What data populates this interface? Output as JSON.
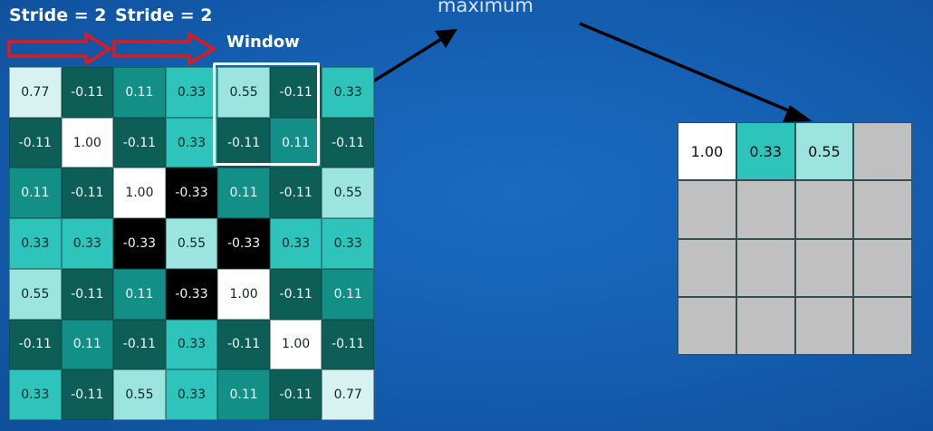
{
  "labels": {
    "stride_1": "Stride = 2",
    "stride_2": "Stride = 2",
    "window": "Window",
    "maximum": "maximum"
  },
  "colors": {
    "background": "#1560b3",
    "window_border": "#ffffff",
    "stride_arrow": "#e0191d",
    "pointer_arrow": "#000000",
    "empty_output_cell": "#c0c0c0"
  },
  "input_grid": [
    [
      {
        "v": "0.77",
        "bg": "#d7f2f0"
      },
      {
        "v": "-0.11",
        "bg": "#0e5e58",
        "w": 1
      },
      {
        "v": "0.11",
        "bg": "#128f86",
        "w": 1
      },
      {
        "v": "0.33",
        "bg": "#2ec3bb"
      },
      {
        "v": "0.55",
        "bg": "#9be4e0"
      },
      {
        "v": "-0.11",
        "bg": "#0e5e58",
        "w": 1
      },
      {
        "v": "0.33",
        "bg": "#2ec3bb"
      }
    ],
    [
      {
        "v": "-0.11",
        "bg": "#0e5e58",
        "w": 1
      },
      {
        "v": "1.00",
        "bg": "#ffffff"
      },
      {
        "v": "-0.11",
        "bg": "#0e5e58",
        "w": 1
      },
      {
        "v": "0.33",
        "bg": "#2ec3bb"
      },
      {
        "v": "-0.11",
        "bg": "#0e5e58",
        "w": 1
      },
      {
        "v": "0.11",
        "bg": "#128f86",
        "w": 1
      },
      {
        "v": "-0.11",
        "bg": "#0e5e58",
        "w": 1
      }
    ],
    [
      {
        "v": "0.11",
        "bg": "#128f86",
        "w": 1
      },
      {
        "v": "-0.11",
        "bg": "#0e5e58",
        "w": 1
      },
      {
        "v": "1.00",
        "bg": "#ffffff"
      },
      {
        "v": "-0.33",
        "bg": "#000000",
        "w": 1
      },
      {
        "v": "0.11",
        "bg": "#128f86",
        "w": 1
      },
      {
        "v": "-0.11",
        "bg": "#0e5e58",
        "w": 1
      },
      {
        "v": "0.55",
        "bg": "#9be4e0"
      }
    ],
    [
      {
        "v": "0.33",
        "bg": "#2ec3bb"
      },
      {
        "v": "0.33",
        "bg": "#2ec3bb"
      },
      {
        "v": "-0.33",
        "bg": "#000000",
        "w": 1
      },
      {
        "v": "0.55",
        "bg": "#9be4e0"
      },
      {
        "v": "-0.33",
        "bg": "#000000",
        "w": 1
      },
      {
        "v": "0.33",
        "bg": "#2ec3bb"
      },
      {
        "v": "0.33",
        "bg": "#2ec3bb"
      }
    ],
    [
      {
        "v": "0.55",
        "bg": "#9be4e0"
      },
      {
        "v": "-0.11",
        "bg": "#0e5e58",
        "w": 1
      },
      {
        "v": "0.11",
        "bg": "#128f86",
        "w": 1
      },
      {
        "v": "-0.33",
        "bg": "#000000",
        "w": 1
      },
      {
        "v": "1.00",
        "bg": "#ffffff"
      },
      {
        "v": "-0.11",
        "bg": "#0e5e58",
        "w": 1
      },
      {
        "v": "0.11",
        "bg": "#128f86",
        "w": 1
      }
    ],
    [
      {
        "v": "-0.11",
        "bg": "#0e5e58",
        "w": 1
      },
      {
        "v": "0.11",
        "bg": "#128f86",
        "w": 1
      },
      {
        "v": "-0.11",
        "bg": "#0e5e58",
        "w": 1
      },
      {
        "v": "0.33",
        "bg": "#2ec3bb"
      },
      {
        "v": "-0.11",
        "bg": "#0e5e58",
        "w": 1
      },
      {
        "v": "1.00",
        "bg": "#ffffff"
      },
      {
        "v": "-0.11",
        "bg": "#0e5e58",
        "w": 1
      }
    ],
    [
      {
        "v": "0.33",
        "bg": "#2ec3bb"
      },
      {
        "v": "-0.11",
        "bg": "#0e5e58",
        "w": 1
      },
      {
        "v": "0.55",
        "bg": "#9be4e0"
      },
      {
        "v": "0.33",
        "bg": "#2ec3bb"
      },
      {
        "v": "0.11",
        "bg": "#128f86",
        "w": 1
      },
      {
        "v": "-0.11",
        "bg": "#0e5e58",
        "w": 1
      },
      {
        "v": "0.77",
        "bg": "#d7f2f0"
      }
    ]
  ],
  "output_grid": [
    [
      {
        "v": "1.00",
        "bg": "#ffffff"
      },
      {
        "v": "0.33",
        "bg": "#2ec3bb"
      },
      {
        "v": "0.55",
        "bg": "#9be4e0"
      },
      {
        "v": "",
        "bg": "#c0c0c0"
      }
    ],
    [
      {
        "v": "",
        "bg": "#c0c0c0"
      },
      {
        "v": "",
        "bg": "#c0c0c0"
      },
      {
        "v": "",
        "bg": "#c0c0c0"
      },
      {
        "v": "",
        "bg": "#c0c0c0"
      }
    ],
    [
      {
        "v": "",
        "bg": "#c0c0c0"
      },
      {
        "v": "",
        "bg": "#c0c0c0"
      },
      {
        "v": "",
        "bg": "#c0c0c0"
      },
      {
        "v": "",
        "bg": "#c0c0c0"
      }
    ],
    [
      {
        "v": "",
        "bg": "#c0c0c0"
      },
      {
        "v": "",
        "bg": "#c0c0c0"
      },
      {
        "v": "",
        "bg": "#c0c0c0"
      },
      {
        "v": "",
        "bg": "#c0c0c0"
      }
    ]
  ]
}
